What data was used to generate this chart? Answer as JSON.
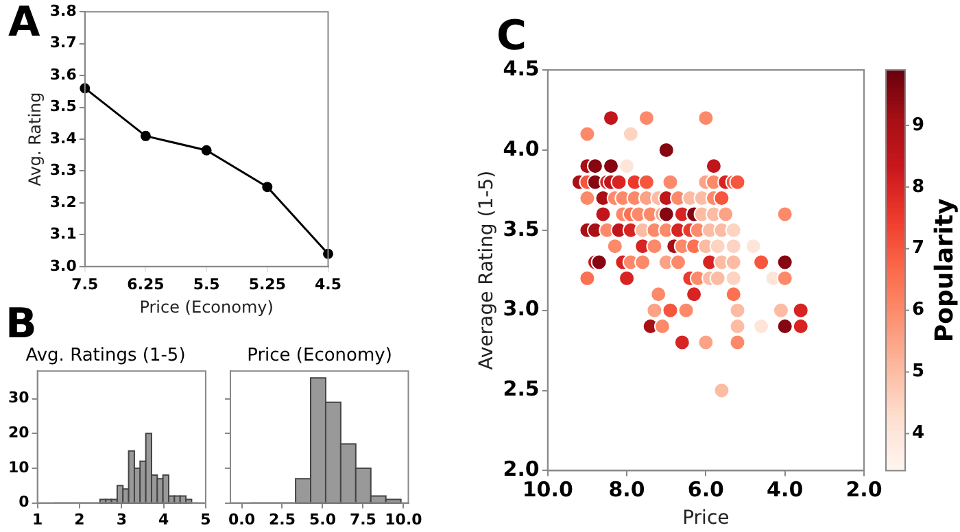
{
  "chart_data": [
    {
      "type": "line",
      "annotations": [
        "A"
      ],
      "xlabel": "Price (Economy)",
      "ylabel": "Avg. Rating",
      "categories": [
        "7.5",
        "6.25",
        "5.5",
        "5.25",
        "4.5"
      ],
      "values": [
        3.56,
        3.41,
        3.365,
        3.25,
        3.04
      ],
      "color": "#000000",
      "marker": "circle",
      "ylim": [
        3.0,
        3.8
      ],
      "yticks": [
        {
          "value": 3.0,
          "label": "3.0"
        },
        3.1,
        3.2,
        3.3,
        3.4,
        3.5,
        3.6,
        3.7,
        3.8
      ]
    },
    {
      "type": "histogram",
      "annotations": [
        "B"
      ],
      "title": "Avg. Ratings (1-5)",
      "bins": [
        1.4,
        1.536,
        1.672,
        1.808,
        1.944,
        2.08,
        2.216,
        2.352,
        2.488,
        2.624,
        2.76,
        2.896,
        3.032,
        3.168,
        3.304,
        3.44,
        3.576,
        3.712,
        3.848,
        3.984,
        4.12,
        4.256,
        4.392,
        4.528,
        4.664,
        4.8
      ],
      "values": [
        0,
        0,
        0,
        0,
        0,
        0,
        0,
        0,
        1,
        1,
        1,
        5,
        4,
        15,
        10,
        12,
        20,
        8,
        7,
        8,
        2,
        2,
        2,
        1,
        0
      ],
      "color": "#999999",
      "xlim": [
        1,
        5
      ],
      "xticks": [
        1,
        2,
        3,
        4,
        5
      ],
      "ylim": [
        0,
        38
      ],
      "yticks": [
        0,
        10,
        20,
        30
      ]
    },
    {
      "type": "histogram",
      "title": "Price (Economy)",
      "bins": [
        0.54,
        1.47,
        2.4,
        3.33,
        4.26,
        5.19,
        6.12,
        7.05,
        7.98,
        8.91,
        9.84
      ],
      "values": [
        0,
        0,
        0,
        7,
        36,
        29,
        17,
        10,
        2,
        1
      ],
      "color": "#999999",
      "xlim": [
        -0.7,
        10.3
      ],
      "xticks": [
        {
          "value": 0,
          "label": "0.0"
        },
        {
          "value": 2.5,
          "label": "2.5"
        },
        {
          "value": 5,
          "label": "5.0"
        },
        {
          "value": 7.5,
          "label": "7.5"
        },
        {
          "value": 10,
          "label": "10.0"
        }
      ],
      "ylim": [
        0,
        38
      ],
      "yticks": [
        0,
        10,
        20,
        30
      ],
      "tick_labels": "x"
    },
    {
      "type": "scatter",
      "annotations": [
        "C"
      ],
      "xlabel": "Price",
      "ylabel": "Average Rating (1-5)",
      "clabel": "Popularity",
      "marker": "circle",
      "x": [
        8.4,
        7.5,
        6.0,
        9.0,
        7.9,
        7.0,
        9.0,
        8.8,
        8.4,
        8.0,
        5.8,
        9.2,
        9.0,
        8.8,
        8.5,
        8.4,
        8.2,
        7.8,
        7.5,
        6.9,
        6.0,
        5.8,
        5.5,
        5.3,
        5.2,
        9.0,
        8.6,
        8.3,
        8.1,
        7.8,
        7.5,
        7.2,
        7.0,
        6.7,
        6.4,
        6.1,
        5.8,
        5.6,
        8.6,
        8.1,
        7.9,
        7.7,
        7.4,
        7.1,
        7.0,
        6.6,
        6.3,
        6.1,
        5.8,
        5.5,
        4.0,
        9.0,
        8.8,
        8.5,
        8.2,
        7.9,
        7.6,
        7.3,
        7.0,
        6.7,
        6.4,
        6.2,
        5.9,
        5.6,
        5.3,
        8.3,
        7.6,
        7.3,
        6.8,
        6.6,
        6.3,
        6.0,
        5.7,
        5.3,
        4.8,
        8.8,
        8.7,
        8.1,
        7.9,
        7.6,
        7.0,
        6.7,
        5.9,
        5.6,
        5.3,
        4.6,
        4.0,
        9.0,
        8.0,
        6.4,
        6.2,
        5.9,
        5.7,
        5.3,
        4.3,
        4.0,
        7.2,
        6.3,
        5.3,
        7.3,
        6.9,
        6.5,
        5.2,
        4.1,
        3.6,
        7.4,
        7.1,
        5.2,
        4.6,
        4.0,
        3.6,
        6.6,
        6.0,
        5.2,
        5.6
      ],
      "values": [
        4.2,
        4.2,
        4.2,
        4.1,
        4.1,
        4.0,
        3.9,
        3.9,
        3.9,
        3.9,
        3.9,
        3.8,
        3.8,
        3.8,
        3.8,
        3.8,
        3.8,
        3.8,
        3.8,
        3.8,
        3.8,
        3.8,
        3.8,
        3.8,
        3.8,
        3.7,
        3.7,
        3.7,
        3.7,
        3.7,
        3.7,
        3.7,
        3.7,
        3.7,
        3.7,
        3.7,
        3.7,
        3.7,
        3.6,
        3.6,
        3.6,
        3.6,
        3.6,
        3.6,
        3.6,
        3.6,
        3.6,
        3.6,
        3.6,
        3.6,
        3.6,
        3.5,
        3.5,
        3.5,
        3.5,
        3.5,
        3.5,
        3.5,
        3.5,
        3.5,
        3.5,
        3.5,
        3.5,
        3.5,
        3.5,
        3.4,
        3.4,
        3.4,
        3.4,
        3.4,
        3.4,
        3.4,
        3.4,
        3.4,
        3.4,
        3.3,
        3.3,
        3.3,
        3.3,
        3.3,
        3.3,
        3.3,
        3.3,
        3.3,
        3.3,
        3.3,
        3.3,
        3.2,
        3.2,
        3.2,
        3.2,
        3.2,
        3.2,
        3.2,
        3.2,
        3.2,
        3.1,
        3.1,
        3.1,
        3.0,
        3.0,
        3.0,
        3.0,
        3.0,
        3.0,
        2.9,
        2.9,
        2.9,
        2.9,
        2.9,
        2.9,
        2.8,
        2.8,
        2.8,
        2.5
      ],
      "cvalues": [
        8.5,
        6,
        6,
        6,
        4.5,
        9.5,
        9,
        9.5,
        9.5,
        4,
        8.5,
        9,
        7,
        9.5,
        8,
        8.5,
        8,
        7.5,
        7,
        6,
        5.5,
        6,
        8,
        7,
        7,
        6,
        9,
        6,
        6,
        6,
        5.5,
        5,
        8.5,
        6,
        5,
        5,
        6,
        7,
        8.5,
        6,
        6.5,
        6,
        6,
        5.5,
        9.5,
        8,
        9.5,
        5,
        5,
        5.5,
        6,
        9,
        9,
        6,
        8.5,
        8,
        5,
        6,
        6,
        8,
        7.5,
        6,
        5,
        5,
        4.5,
        6,
        8,
        6,
        9,
        6,
        6.5,
        5,
        4.5,
        4.5,
        4,
        8.5,
        9.5,
        8,
        6,
        6,
        5.5,
        6,
        8,
        5,
        5,
        7,
        9.5,
        6.5,
        8,
        7.5,
        6,
        5,
        5,
        4.5,
        4,
        6,
        6,
        8,
        6.5,
        5.5,
        7,
        6,
        5,
        5,
        8,
        9,
        6,
        5,
        4,
        9.5,
        8,
        8,
        5.5,
        6,
        5
      ],
      "clim": [
        3.4,
        9.9
      ],
      "cticks": [
        4,
        5,
        6,
        7,
        8,
        9
      ],
      "xlim": [
        10,
        2
      ],
      "xticks": [
        {
          "value": 10,
          "label": "10.0"
        },
        {
          "value": 8,
          "label": "8.0"
        },
        {
          "value": 6,
          "label": "6.0"
        },
        {
          "value": 4,
          "label": "4.0"
        },
        {
          "value": 2,
          "label": "2.0"
        }
      ],
      "ylim": [
        2,
        4.5
      ],
      "yticks": [
        {
          "value": 2,
          "label": "2.0"
        },
        {
          "value": 2.5,
          "label": "2.5"
        },
        {
          "value": 3,
          "label": "3.0"
        },
        {
          "value": 3.5,
          "label": "3.5"
        },
        {
          "value": 4,
          "label": "4.0"
        },
        {
          "value": 4.5,
          "label": "4.5"
        }
      ]
    }
  ]
}
